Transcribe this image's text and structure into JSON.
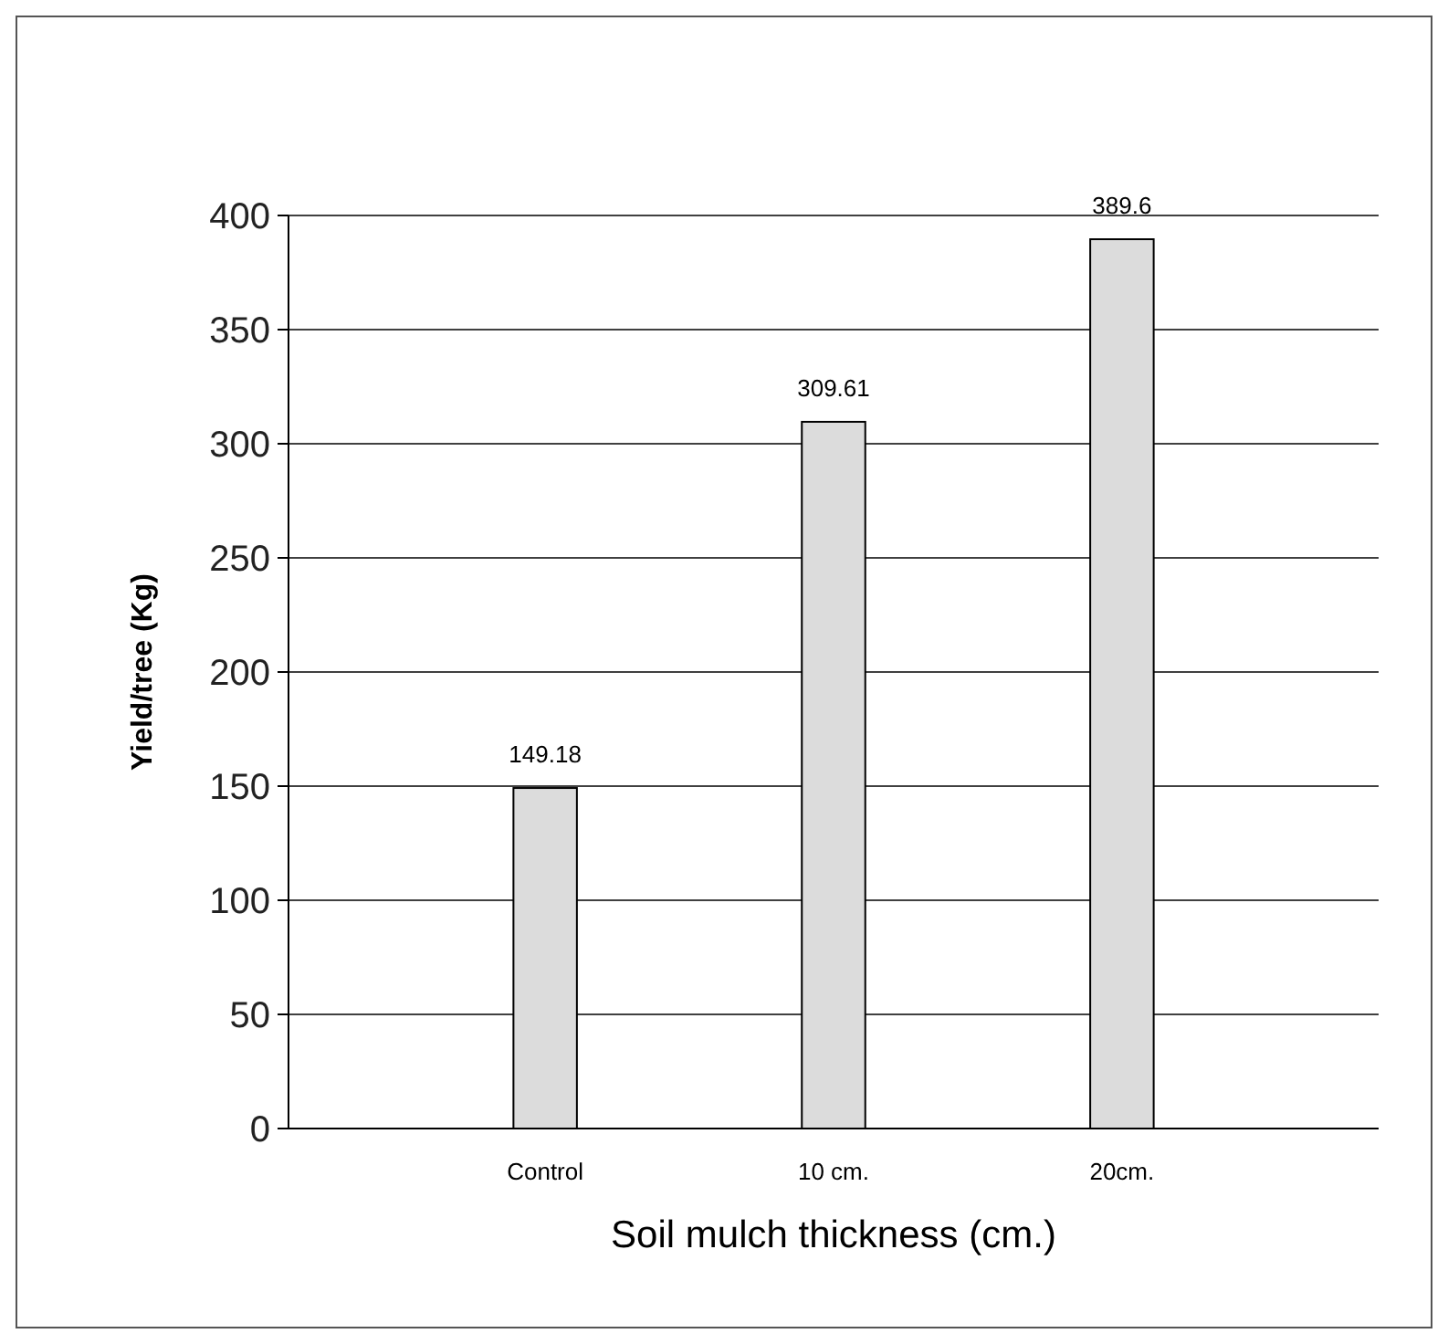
{
  "chart_data": {
    "type": "bar",
    "xlabel": "Soil mulch thickness (cm.)",
    "ylabel": "Yield/tree (Kg)",
    "categories": [
      "Control",
      "10 cm.",
      "20cm."
    ],
    "values": [
      149.18,
      309.61,
      389.6
    ],
    "color": "#dcdcdc",
    "ylim": [
      0,
      400
    ],
    "yticks": [
      0,
      50,
      100,
      150,
      200,
      250,
      300,
      350,
      400
    ],
    "grid": "y",
    "data_labels": true
  }
}
